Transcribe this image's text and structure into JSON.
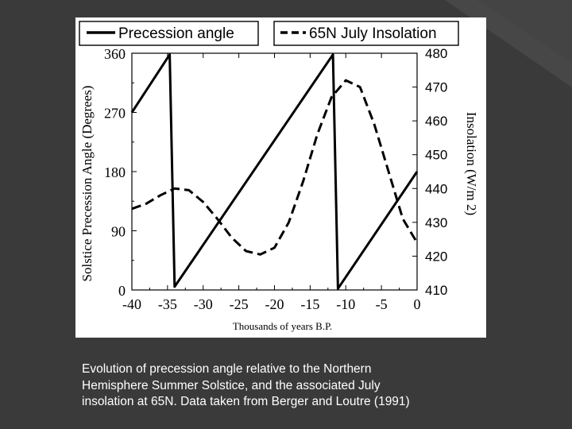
{
  "slide": {
    "caption_lines": [
      "Evolution of precession angle relative to the Northern",
      "Hemisphere Summer Solstice, and the associated July",
      "insolation at 65N.  Data taken from Berger and Loutre (1991)"
    ],
    "colors": {
      "background": "#3a3a3a",
      "accent": "#4a4a4a",
      "figure": "#ffffff",
      "text": "#ffffff"
    }
  },
  "chart_data": {
    "type": "line",
    "title": "",
    "xlabel": "Thousands of years B.P.",
    "ylabel_left": "Solstice Precession Angle (Degrees)",
    "ylabel_right": "Insolation (W/m 2)",
    "xlim": [
      -40,
      0
    ],
    "ylim_left": [
      0,
      360
    ],
    "ylim_right": [
      410,
      480
    ],
    "x_ticks": [
      -40,
      -35,
      -30,
      -25,
      -20,
      -15,
      -10,
      -5,
      0
    ],
    "x_tick_labels": [
      "-40",
      "-35",
      "-30",
      "-25",
      "-20",
      "-15",
      "-10",
      "-5",
      "0"
    ],
    "y_left_ticks": [
      0,
      90,
      180,
      270,
      360
    ],
    "y_left_tick_labels": [
      "0",
      "90",
      "180",
      "270",
      "360"
    ],
    "y_right_ticks": [
      410,
      420,
      430,
      440,
      450,
      460,
      470,
      480
    ],
    "y_right_tick_labels": [
      "410",
      "420",
      "430",
      "440",
      "450",
      "460",
      "470",
      "480"
    ],
    "legend": {
      "placement": "top",
      "entries": [
        "Precession angle",
        "65N July Insolation"
      ]
    },
    "series": [
      {
        "name": "Precession angle",
        "axis": "left",
        "style": "solid",
        "x": [
          -40,
          -34.7,
          -34.0,
          -11.8,
          -11.1,
          0
        ],
        "y": [
          270,
          358,
          5,
          358,
          2,
          180
        ]
      },
      {
        "name": "65N July Insolation",
        "axis": "right",
        "style": "dashed",
        "x": [
          -40,
          -38,
          -36,
          -34,
          -32,
          -30,
          -28,
          -26,
          -24,
          -22,
          -20,
          -18,
          -16,
          -14,
          -12,
          -10,
          -8,
          -6,
          -4,
          -2,
          0
        ],
        "y": [
          434,
          435.5,
          438,
          440,
          439.5,
          436,
          431,
          425.5,
          421.5,
          420.5,
          422.5,
          430,
          442,
          456,
          467,
          472,
          470,
          459,
          445,
          431,
          424
        ]
      }
    ]
  }
}
